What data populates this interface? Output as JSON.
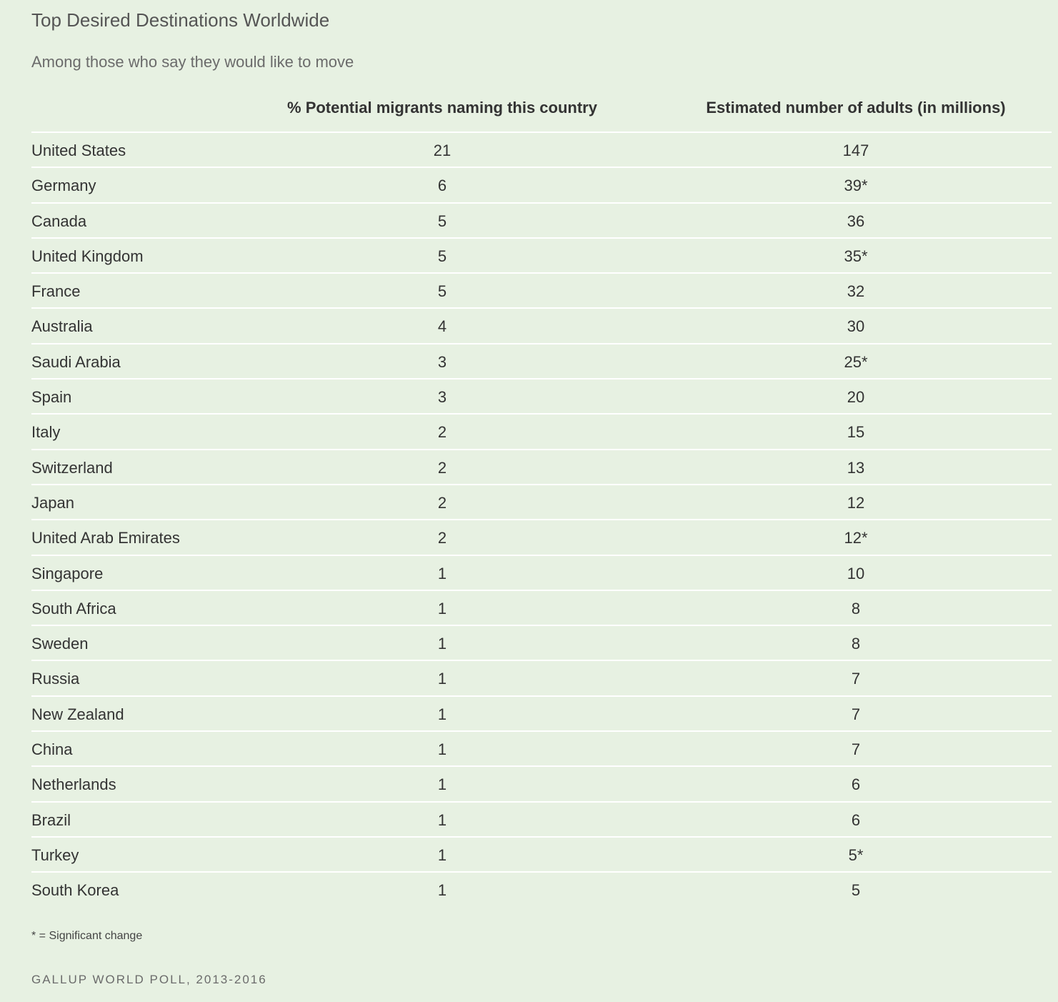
{
  "title": "Top Desired Destinations Worldwide",
  "subtitle": "Among those who say they would like to move",
  "chart_data": {
    "type": "table",
    "columns": [
      "",
      "% Potential migrants naming this country",
      "Estimated number of adults (in millions)"
    ],
    "rows": [
      {
        "country": "United States",
        "pct": "21",
        "adults": "147"
      },
      {
        "country": "Germany",
        "pct": "6",
        "adults": "39*"
      },
      {
        "country": "Canada",
        "pct": "5",
        "adults": "36"
      },
      {
        "country": "United Kingdom",
        "pct": "5",
        "adults": "35*"
      },
      {
        "country": "France",
        "pct": "5",
        "adults": "32"
      },
      {
        "country": "Australia",
        "pct": "4",
        "adults": "30"
      },
      {
        "country": "Saudi Arabia",
        "pct": "3",
        "adults": "25*"
      },
      {
        "country": "Spain",
        "pct": "3",
        "adults": "20"
      },
      {
        "country": "Italy",
        "pct": "2",
        "adults": "15"
      },
      {
        "country": "Switzerland",
        "pct": "2",
        "adults": "13"
      },
      {
        "country": "Japan",
        "pct": "2",
        "adults": "12"
      },
      {
        "country": "United Arab Emirates",
        "pct": "2",
        "adults": "12*"
      },
      {
        "country": "Singapore",
        "pct": "1",
        "adults": "10"
      },
      {
        "country": "South Africa",
        "pct": "1",
        "adults": "8"
      },
      {
        "country": "Sweden",
        "pct": "1",
        "adults": "8"
      },
      {
        "country": "Russia",
        "pct": "1",
        "adults": "7"
      },
      {
        "country": "New Zealand",
        "pct": "1",
        "adults": "7"
      },
      {
        "country": "China",
        "pct": "1",
        "adults": "7"
      },
      {
        "country": "Netherlands",
        "pct": "1",
        "adults": "6"
      },
      {
        "country": "Brazil",
        "pct": "1",
        "adults": "6"
      },
      {
        "country": "Turkey",
        "pct": "1",
        "adults": "5*"
      },
      {
        "country": "South Korea",
        "pct": "1",
        "adults": "5"
      }
    ]
  },
  "footnote": "* = Significant change",
  "source": "GALLUP WORLD POLL, 2013-2016",
  "colors": {
    "background": "#e7f1e2",
    "divider": "#ffffff",
    "text": "#333333"
  }
}
